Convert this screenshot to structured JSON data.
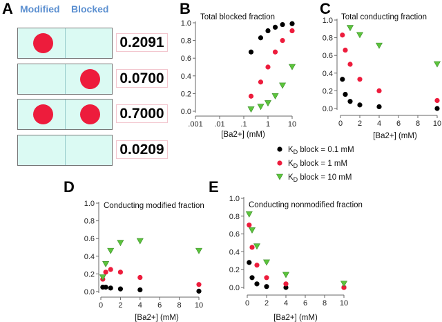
{
  "panel_labels": {
    "a": "A",
    "b": "B",
    "c": "C",
    "d": "D",
    "e": "E"
  },
  "panel_a": {
    "headers": {
      "modified": "Modified",
      "blocked": "Blocked"
    },
    "rows": [
      {
        "modified": true,
        "blocked": false,
        "value": "0.2091"
      },
      {
        "modified": false,
        "blocked": true,
        "value": "0.0700"
      },
      {
        "modified": true,
        "blocked": true,
        "value": "0.7000"
      },
      {
        "modified": false,
        "blocked": false,
        "value": "0.0209"
      }
    ]
  },
  "legend": [
    {
      "label": "K",
      "sub": "D",
      "rest": " block = 0.1 mM",
      "color": "#000000",
      "marker": "circle"
    },
    {
      "label": "K",
      "sub": "D",
      "rest": " block = 1 mM",
      "color": "#ed1c3c",
      "marker": "circle"
    },
    {
      "label": "K",
      "sub": "D",
      "rest": " block = 10 mM",
      "color": "#5cc43c",
      "marker": "triangle-down"
    }
  ],
  "chart_data": [
    {
      "id": "B",
      "type": "scatter",
      "title": "Total blocked fraction",
      "xlabel": "[Ba2+] (mM)",
      "xscale": "log",
      "xlim": [
        0.001,
        10
      ],
      "xticks": [
        ".001",
        ".01",
        ".1",
        "1",
        "10"
      ],
      "ylim": [
        0,
        1
      ],
      "yticks": [
        "0.0",
        "0.2",
        "0.4",
        "0.6",
        "0.8",
        "1.0"
      ],
      "x": [
        0.2,
        0.5,
        1,
        2,
        4,
        10
      ],
      "series": [
        {
          "name": "KD 0.1 mM",
          "values": [
            0.67,
            0.83,
            0.91,
            0.95,
            0.98,
            0.99
          ]
        },
        {
          "name": "KD 1 mM",
          "values": [
            0.17,
            0.33,
            0.5,
            0.67,
            0.8,
            0.91
          ]
        },
        {
          "name": "KD 10 mM",
          "values": [
            0.02,
            0.05,
            0.09,
            0.17,
            0.29,
            0.5
          ]
        }
      ]
    },
    {
      "id": "C",
      "type": "scatter",
      "title": "Total conducting fraction",
      "xlabel": "[Ba2+] (mM)",
      "xscale": "linear",
      "xlim": [
        0,
        10
      ],
      "xticks": [
        "0",
        "2",
        "4",
        "6",
        "8",
        "10"
      ],
      "ylim": [
        0,
        1
      ],
      "yticks": [
        "0.0",
        "0.2",
        "0.4",
        "0.6",
        "0.8",
        "1.0"
      ],
      "x": [
        0.2,
        0.5,
        1,
        2,
        4,
        10
      ],
      "series": [
        {
          "name": "KD 0.1 mM",
          "values": [
            0.33,
            0.16,
            0.08,
            0.04,
            0.02,
            0.0
          ]
        },
        {
          "name": "KD 1 mM",
          "values": [
            0.83,
            0.66,
            0.5,
            0.33,
            0.2,
            0.09
          ]
        },
        {
          "name": "KD 10 mM",
          "values": [
            null,
            null,
            0.91,
            0.83,
            0.71,
            0.5
          ]
        }
      ]
    },
    {
      "id": "D",
      "type": "scatter",
      "title": "Conducting modified fraction",
      "xlabel": "[Ba2+] (mM)",
      "xscale": "linear",
      "xlim": [
        0,
        10
      ],
      "xticks": [
        "0",
        "2",
        "4",
        "6",
        "8",
        "10"
      ],
      "ylim": [
        0,
        1
      ],
      "yticks": [
        "0.0",
        "0.2",
        "0.4",
        "0.6",
        "0.8",
        "1.0"
      ],
      "x": [
        0.2,
        0.5,
        1,
        2,
        4,
        10
      ],
      "series": [
        {
          "name": "KD 0.1 mM",
          "values": [
            0.05,
            0.05,
            0.04,
            0.03,
            0.02,
            0.005
          ]
        },
        {
          "name": "KD 1 mM",
          "values": [
            0.14,
            0.22,
            0.25,
            0.22,
            0.16,
            0.08
          ]
        },
        {
          "name": "KD 10 mM",
          "values": [
            0.16,
            0.31,
            0.46,
            0.55,
            0.57,
            0.46
          ]
        }
      ]
    },
    {
      "id": "E",
      "type": "scatter",
      "title": "Conducting nonmodified fraction",
      "xlabel": "[Ba2+] (mM)",
      "xscale": "linear",
      "xlim": [
        0,
        10
      ],
      "xticks": [
        "0",
        "2",
        "4",
        "6",
        "8",
        "10"
      ],
      "ylim": [
        0,
        1
      ],
      "yticks": [
        "0.0",
        "0.2",
        "0.4",
        "0.6",
        "0.8",
        "1.0"
      ],
      "x": [
        0.2,
        0.5,
        1,
        2,
        4,
        10
      ],
      "series": [
        {
          "name": "KD 0.1 mM",
          "values": [
            0.28,
            0.11,
            0.04,
            0.01,
            0.0,
            0.0
          ]
        },
        {
          "name": "KD 1 mM",
          "values": [
            0.7,
            0.45,
            0.25,
            0.11,
            0.04,
            0.0
          ]
        },
        {
          "name": "KD 10 mM",
          "values": [
            0.82,
            0.64,
            0.46,
            0.28,
            0.14,
            0.04
          ]
        }
      ]
    }
  ],
  "colors": [
    "#000000",
    "#ed1c3c",
    "#5cc43c"
  ]
}
